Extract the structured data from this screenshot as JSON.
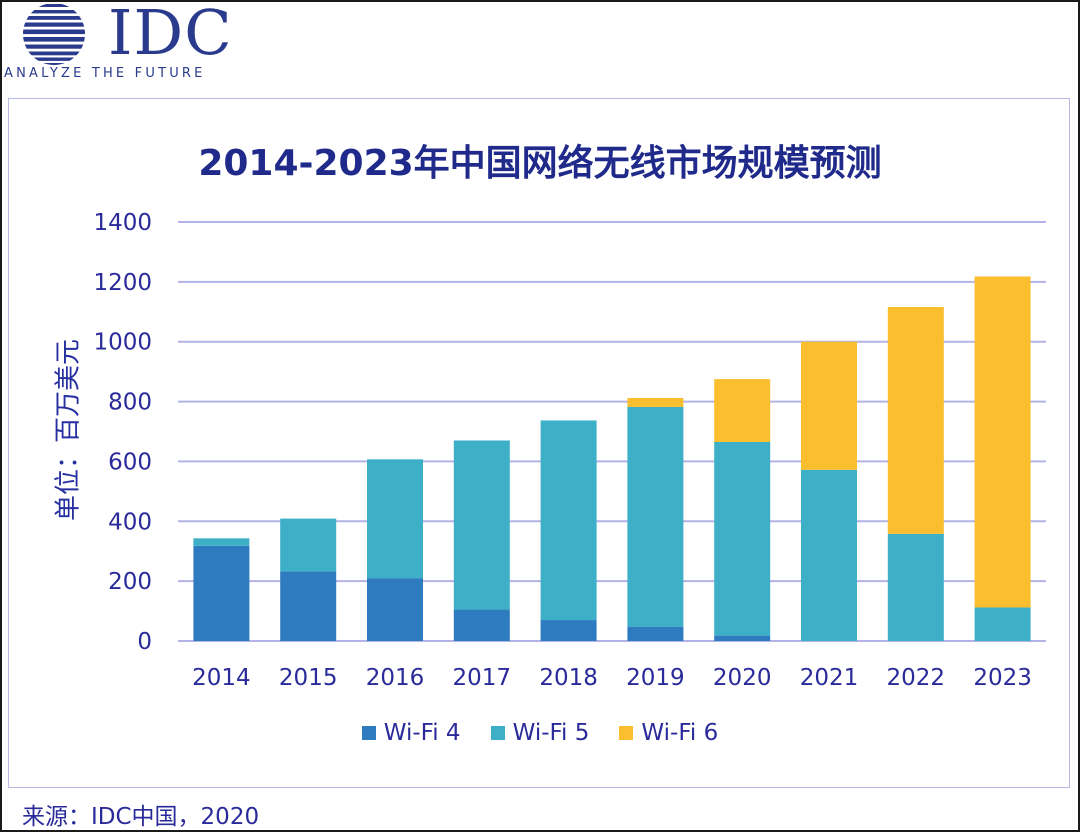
{
  "logo": {
    "word": "IDC",
    "tagline": "ANALYZE THE FUTURE"
  },
  "source_note": "来源：IDC中国，2020",
  "chart_data": {
    "type": "bar",
    "stacked": true,
    "title": "2014-2023年中国网络无线市场规模预测",
    "xlabel": "",
    "ylabel": "单位：百万美元",
    "ylim": [
      0,
      1400
    ],
    "yticks": [
      0,
      200,
      400,
      600,
      800,
      1000,
      1200,
      1400
    ],
    "grid": true,
    "legend_position": "bottom",
    "categories": [
      "2014",
      "2015",
      "2016",
      "2017",
      "2018",
      "2019",
      "2020",
      "2021",
      "2022",
      "2023"
    ],
    "series": [
      {
        "name": "Wi-Fi 4",
        "color": "#2e7bbf",
        "values": [
          318,
          232,
          210,
          105,
          70,
          48,
          18,
          0,
          0,
          0
        ]
      },
      {
        "name": "Wi-Fi 5",
        "color": "#3dafc7",
        "values": [
          25,
          177,
          397,
          565,
          667,
          734,
          647,
          572,
          358,
          112
        ]
      },
      {
        "name": "Wi-Fi 6",
        "color": "#fbbe2e",
        "values": [
          0,
          0,
          0,
          0,
          0,
          30,
          210,
          428,
          758,
          1106
        ]
      }
    ]
  }
}
